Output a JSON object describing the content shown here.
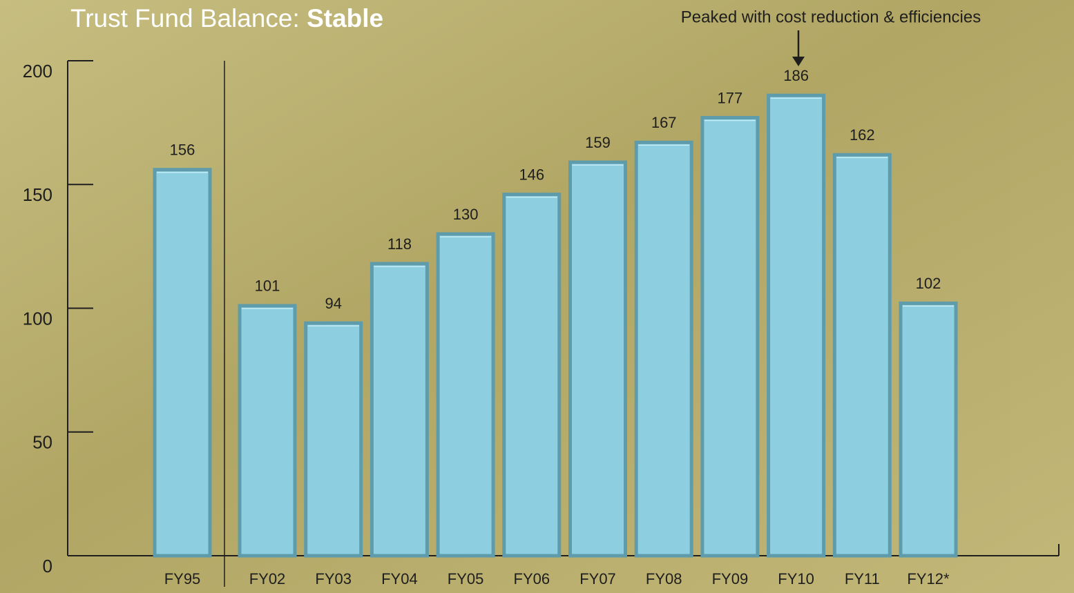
{
  "chart_data": {
    "type": "bar",
    "title": "Trust Fund Balance:",
    "title_emphasis": "Stable",
    "annotation": "Peaked with cost reduction & efficiencies",
    "categories": [
      "FY95",
      "FY02",
      "FY03",
      "FY04",
      "FY05",
      "FY06",
      "FY07",
      "FY08",
      "FY09",
      "FY10",
      "FY11",
      "FY12*"
    ],
    "values": [
      156,
      101,
      94,
      118,
      130,
      146,
      159,
      167,
      177,
      186,
      162,
      102
    ],
    "color": "#8dcfe0",
    "ylim": [
      0,
      200
    ],
    "yticks": [
      0,
      50,
      100,
      150,
      200
    ],
    "grid": false
  }
}
